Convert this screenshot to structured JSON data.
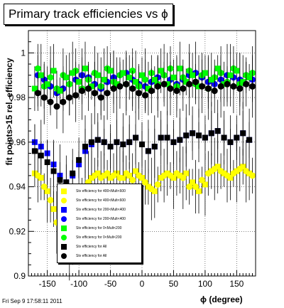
{
  "title": "Primary track efficiencies vs ϕ",
  "footer": "Fri Sep  9 17:58:11 2011",
  "chart_data": {
    "type": "scatter",
    "title": "Primary track efficiencies vs ϕ",
    "xlabel": "ϕ (degree)",
    "ylabel": "fit points>15 rel. efficiency",
    "xlim": [
      -180,
      180
    ],
    "ylim": [
      0.9,
      1.01
    ],
    "xticks": [
      -150,
      -100,
      -50,
      0,
      50,
      100,
      150
    ],
    "yticks": [
      0.9,
      0.92,
      0.94,
      0.96,
      0.98,
      1
    ],
    "yticklabels": [
      "0.9",
      "0.92",
      "0.94",
      "0.96",
      "0.98",
      "1"
    ],
    "grid": true,
    "legend_position": "lower-left",
    "series": [
      {
        "name": "Stv efficiency for 400<Mult<600",
        "marker": "square",
        "color": "#ffff00",
        "x": [
          -170,
          -160,
          -150,
          -140,
          -130,
          -120,
          -110,
          -100,
          -90,
          -80,
          -70,
          -60,
          -50,
          -40,
          -30,
          -20,
          -10,
          0,
          10,
          20,
          30,
          40,
          50,
          60,
          70,
          80,
          90,
          100,
          110,
          120,
          130,
          140,
          150,
          160,
          170
        ],
        "y": [
          0.946,
          0.944,
          0.938,
          0.93,
          0.918,
          0.912,
          0.915,
          0.928,
          0.94,
          0.944,
          0.946,
          0.945,
          0.944,
          0.946,
          0.944,
          0.945,
          0.947,
          0.944,
          0.94,
          0.938,
          0.944,
          0.946,
          0.944,
          0.945,
          0.946,
          0.942,
          0.938,
          0.941,
          0.947,
          0.949,
          0.946,
          0.944,
          0.947,
          0.949,
          0.946
        ]
      },
      {
        "name": "Stv efficiency for 400<Mult<600",
        "marker": "circle",
        "color": "#ffff00",
        "x": [
          -165,
          -155,
          -145,
          -135,
          -125,
          -115,
          -105,
          -95,
          -85,
          -75,
          -65,
          -55,
          -45,
          -35,
          -25,
          -15,
          -5,
          5,
          15,
          25,
          35,
          45,
          55,
          65,
          75,
          85,
          95,
          105,
          115,
          125,
          135,
          145,
          155,
          165,
          175
        ],
        "y": [
          0.945,
          0.94,
          0.934,
          0.924,
          0.914,
          0.91,
          0.92,
          0.934,
          0.942,
          0.945,
          0.944,
          0.946,
          0.945,
          0.944,
          0.946,
          0.943,
          0.945,
          0.942,
          0.939,
          0.941,
          0.945,
          0.945,
          0.946,
          0.944,
          0.94,
          0.94,
          0.943,
          0.946,
          0.948,
          0.947,
          0.945,
          0.946,
          0.948,
          0.947,
          0.945
        ]
      },
      {
        "name": "Stv efficiency for 200<Mult<400",
        "marker": "square",
        "color": "#0000ff",
        "x": [
          -170,
          -160,
          -150,
          -140,
          -130,
          -120,
          -110,
          -100,
          -90,
          -80,
          -70,
          -60,
          -50,
          -40,
          -30,
          -20,
          -10,
          0,
          10,
          20,
          30,
          40,
          50,
          60,
          70,
          80,
          90,
          100,
          110,
          120,
          130,
          140,
          150,
          160,
          170
        ],
        "y": [
          0.96,
          0.958,
          0.955,
          0.95,
          0.945,
          0.942,
          0.945,
          0.95,
          0.956,
          0.959,
          0.961,
          0.96,
          0.958,
          0.96,
          0.959,
          0.96,
          0.962,
          0.959,
          0.956,
          0.958,
          0.962,
          0.962,
          0.96,
          0.961,
          0.963,
          0.964,
          0.963,
          0.962,
          0.964,
          0.965,
          0.962,
          0.96,
          0.962,
          0.964,
          0.961
        ]
      },
      {
        "name": "Stv efficiency for 200<Mult<400",
        "marker": "circle",
        "color": "#0000ff",
        "x": [
          -165,
          -155,
          -145,
          -135,
          -125,
          -115,
          -105,
          -95,
          -85,
          -75,
          -65,
          -55,
          -45,
          -35,
          -25,
          -15,
          -5,
          5,
          15,
          25,
          35,
          45,
          55,
          65,
          75,
          85,
          95,
          105,
          115,
          125,
          135,
          145,
          155,
          165,
          175
        ],
        "y": [
          0.99,
          0.988,
          0.985,
          0.982,
          0.984,
          0.986,
          0.988,
          0.99,
          0.989,
          0.986,
          0.984,
          0.987,
          0.989,
          0.99,
          0.991,
          0.988,
          0.986,
          0.985,
          0.987,
          0.989,
          0.99,
          0.988,
          0.986,
          0.988,
          0.99,
          0.991,
          0.989,
          0.987,
          0.986,
          0.988,
          0.99,
          0.989,
          0.988,
          0.99,
          0.988
        ]
      },
      {
        "name": "Stv efficiency for 0<Mult<200",
        "marker": "square",
        "color": "#00ff00",
        "x": [
          -170,
          -160,
          -150,
          -140,
          -130,
          -120,
          -110,
          -100,
          -90,
          -80,
          -70,
          -60,
          -50,
          -40,
          -30,
          -20,
          -10,
          0,
          10,
          20,
          30,
          40,
          50,
          60,
          70,
          80,
          90,
          100,
          110,
          120,
          130,
          140,
          150,
          160,
          170
        ],
        "y": [
          0.984,
          0.99,
          0.986,
          0.992,
          0.983,
          0.989,
          0.991,
          0.987,
          0.993,
          0.985,
          0.99,
          0.988,
          0.992,
          0.986,
          0.991,
          0.989,
          0.987,
          0.99,
          0.984,
          0.988,
          0.992,
          0.986,
          0.989,
          0.993,
          0.987,
          0.99,
          0.985,
          0.991,
          0.988,
          0.993,
          0.986,
          0.99,
          0.992,
          0.987,
          0.989
        ]
      },
      {
        "name": "Stv efficiency for 0<Mult<200",
        "marker": "circle",
        "color": "#00ff00",
        "x": [
          -165,
          -155,
          -145,
          -135,
          -125,
          -115,
          -105,
          -95,
          -85,
          -75,
          -65,
          -55,
          -45,
          -35,
          -25,
          -15,
          -5,
          5,
          15,
          25,
          35,
          45,
          55,
          65,
          75,
          85,
          95,
          105,
          115,
          125,
          135,
          145,
          155,
          165,
          175
        ],
        "y": [
          0.993,
          0.985,
          0.989,
          0.984,
          0.99,
          0.986,
          0.992,
          0.984,
          0.988,
          0.991,
          0.985,
          0.993,
          0.987,
          0.99,
          0.986,
          0.992,
          0.985,
          0.988,
          0.991,
          0.986,
          0.99,
          0.993,
          0.985,
          0.989,
          0.992,
          0.986,
          0.99,
          0.984,
          0.989,
          0.991,
          0.987,
          0.993,
          0.986,
          0.99,
          0.991
        ]
      },
      {
        "name": "Stv efficiency for All",
        "marker": "square",
        "color": "#000000",
        "x": [
          -170,
          -160,
          -150,
          -140,
          -130,
          -120,
          -110,
          -100,
          -90,
          -80,
          -70,
          -60,
          -50,
          -40,
          -30,
          -20,
          -10,
          0,
          10,
          20,
          30,
          40,
          50,
          60,
          70,
          80,
          90,
          100,
          110,
          120,
          130,
          140,
          150,
          160,
          170
        ],
        "y": [
          0.956,
          0.954,
          0.951,
          0.947,
          0.943,
          0.942,
          0.946,
          0.952,
          0.958,
          0.96,
          0.961,
          0.96,
          0.958,
          0.96,
          0.959,
          0.96,
          0.962,
          0.959,
          0.956,
          0.958,
          0.962,
          0.962,
          0.96,
          0.961,
          0.963,
          0.964,
          0.963,
          0.962,
          0.964,
          0.965,
          0.962,
          0.96,
          0.962,
          0.964,
          0.961
        ]
      },
      {
        "name": "Stv efficiency for All",
        "marker": "circle",
        "color": "#000000",
        "x": [
          -165,
          -155,
          -145,
          -135,
          -125,
          -115,
          -105,
          -95,
          -85,
          -75,
          -65,
          -55,
          -45,
          -35,
          -25,
          -15,
          -5,
          5,
          15,
          25,
          35,
          45,
          55,
          65,
          75,
          85,
          95,
          105,
          115,
          125,
          135,
          145,
          155,
          165,
          175
        ],
        "y": [
          0.982,
          0.98,
          0.978,
          0.976,
          0.978,
          0.98,
          0.981,
          0.983,
          0.984,
          0.982,
          0.98,
          0.982,
          0.984,
          0.985,
          0.986,
          0.984,
          0.982,
          0.981,
          0.983,
          0.985,
          0.986,
          0.984,
          0.983,
          0.984,
          0.986,
          0.987,
          0.985,
          0.984,
          0.983,
          0.985,
          0.986,
          0.985,
          0.984,
          0.986,
          0.985
        ]
      }
    ]
  }
}
